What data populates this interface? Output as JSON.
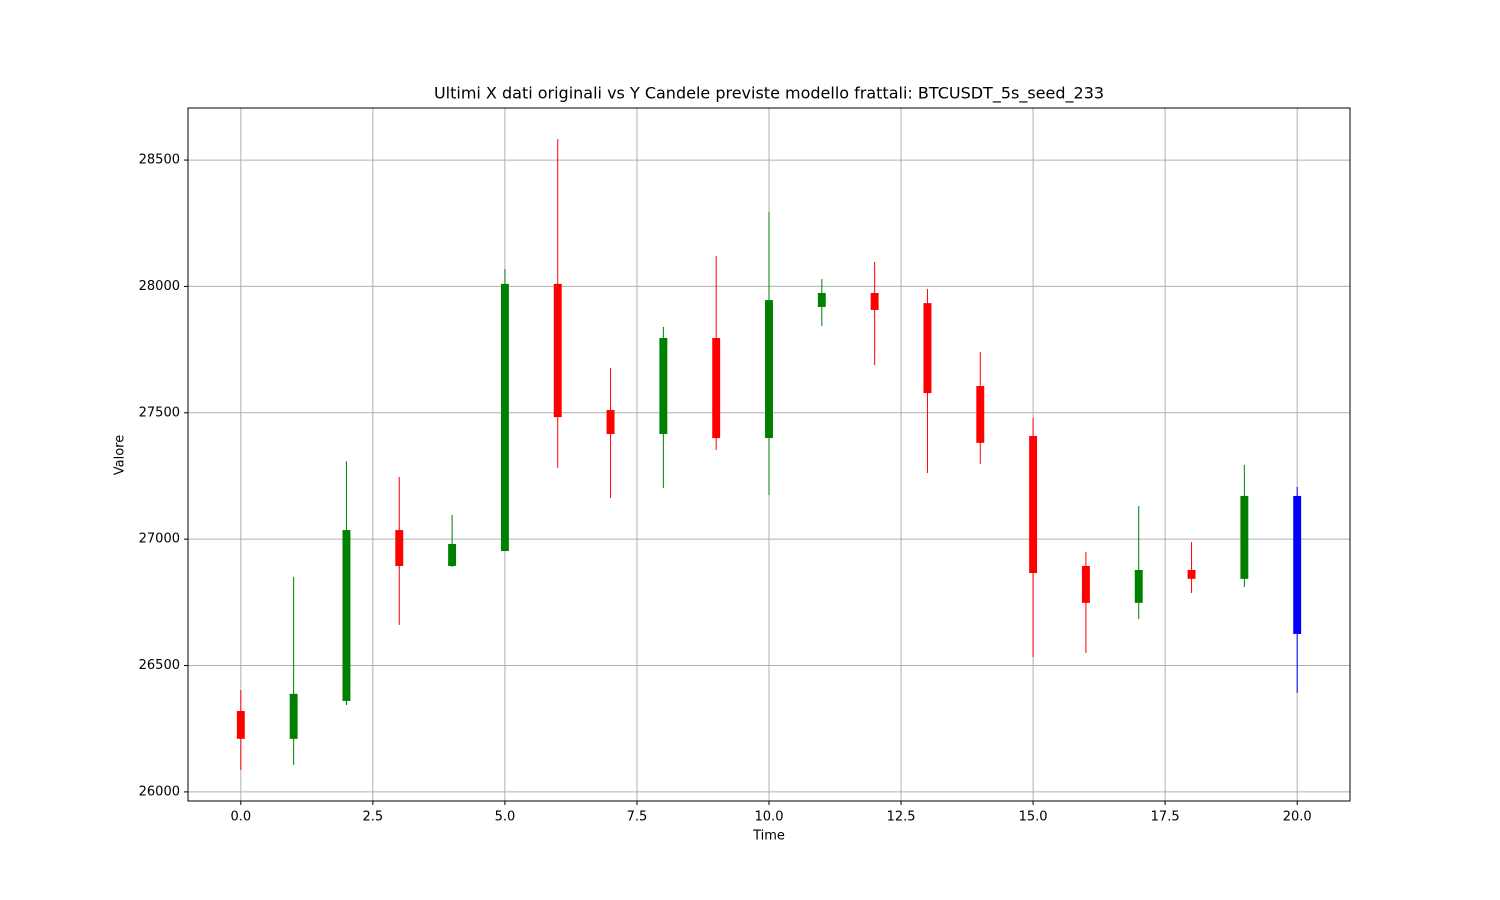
{
  "chart_data": {
    "type": "candlestick",
    "title": "Ultimi X dati originali vs Y Candele previste modello frattali: BTCUSDT_5s_seed_233",
    "x_label": "Time",
    "y_label": "Valore",
    "x": [
      0,
      1,
      2,
      3,
      4,
      5,
      6,
      7,
      8,
      9,
      10,
      11,
      12,
      13,
      14,
      15,
      16,
      17,
      18,
      19,
      20
    ],
    "open": [
      26320,
      26210,
      26360,
      27036,
      26894,
      26953,
      28010,
      27511,
      27416,
      27796,
      27400,
      27919,
      27974,
      27934,
      27606,
      27408,
      26894,
      26748,
      26878,
      26843,
      27171
    ],
    "high": [
      26403,
      26851,
      27309,
      27246,
      27096,
      28069,
      28583,
      27677,
      27840,
      28120,
      28294,
      28029,
      28097,
      27990,
      27741,
      27480,
      26949,
      27131,
      26989,
      27294,
      27207
    ],
    "low": [
      26087,
      26107,
      26344,
      26661,
      26890,
      26953,
      27282,
      27163,
      27203,
      27353,
      27175,
      27843,
      27689,
      27262,
      27298,
      26534,
      26550,
      26684,
      26787,
      26811,
      26392
    ],
    "close": [
      26210,
      26388,
      27036,
      26894,
      26981,
      28010,
      27483,
      27416,
      27796,
      27400,
      27946,
      27974,
      27907,
      27578,
      27381,
      26866,
      26748,
      26878,
      26843,
      27171,
      26625
    ],
    "colors": [
      "red",
      "green",
      "green",
      "red",
      "green",
      "green",
      "red",
      "red",
      "green",
      "red",
      "green",
      "green",
      "red",
      "red",
      "red",
      "red",
      "red",
      "green",
      "red",
      "green",
      "blue"
    ],
    "xlim": [
      -1,
      21
    ],
    "ylim": [
      25964,
      28706
    ],
    "xticks": [
      {
        "value": 0,
        "label": "0.0"
      },
      {
        "value": 2.5,
        "label": "2.5"
      },
      {
        "value": 5,
        "label": "5.0"
      },
      {
        "value": 7.5,
        "label": "7.5"
      },
      {
        "value": 10,
        "label": "10.0"
      },
      {
        "value": 12.5,
        "label": "12.5"
      },
      {
        "value": 15,
        "label": "15.0"
      },
      {
        "value": 17.5,
        "label": "17.5"
      },
      {
        "value": 20,
        "label": "20.0"
      }
    ],
    "yticks": [
      26000,
      26500,
      27000,
      27500,
      28000,
      28500
    ],
    "grid": true
  }
}
